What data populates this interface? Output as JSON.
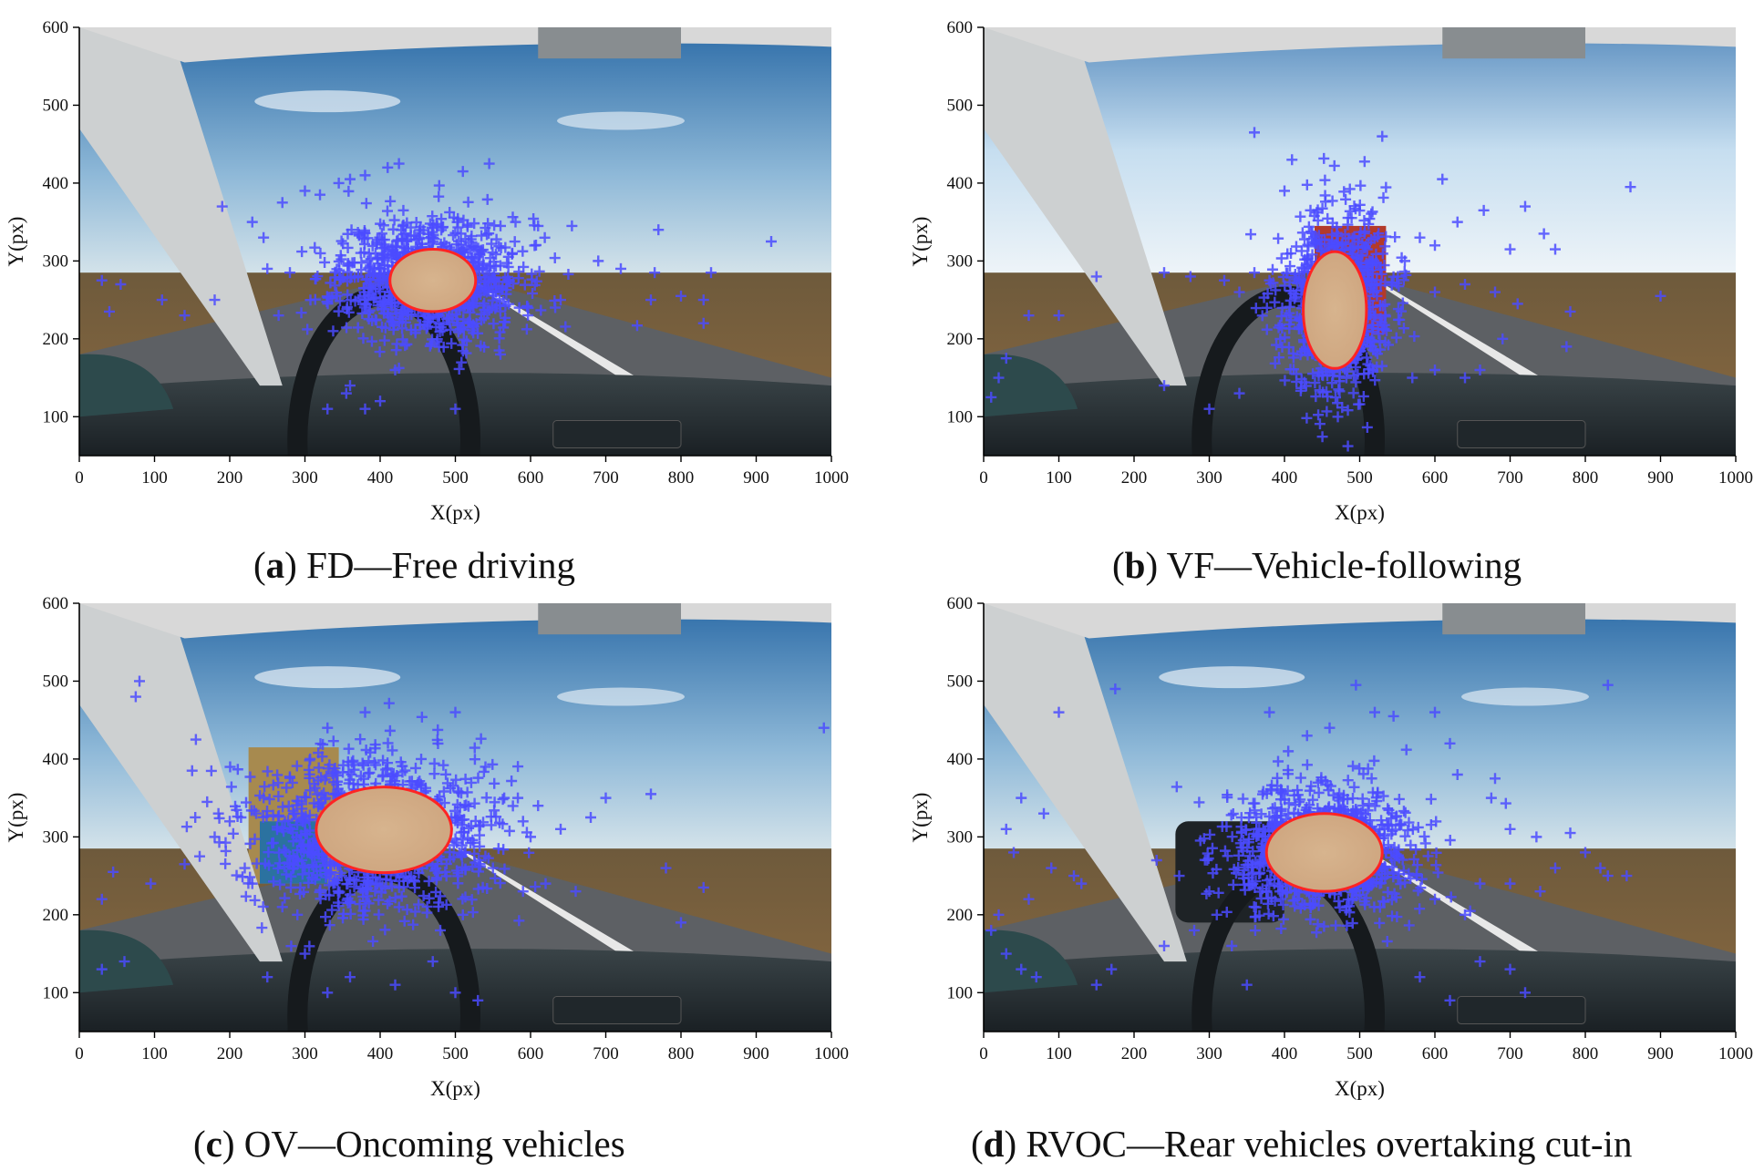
{
  "chart_data": [
    {
      "type": "scatter",
      "panel_letter": "a",
      "caption": "FD—Free driving",
      "xlabel": "X(px)",
      "ylabel": "Y(px)",
      "xlim": [
        0,
        1000
      ],
      "ylim": [
        50,
        600
      ],
      "xticks": [
        0,
        100,
        200,
        300,
        400,
        500,
        600,
        700,
        800,
        900,
        1000
      ],
      "yticks": [
        100,
        200,
        300,
        400,
        500,
        600
      ],
      "background": "driver-view-windshield-open-road",
      "ellipse": {
        "cx": 470,
        "cy": 275,
        "rx": 57,
        "ry": 40
      },
      "cloud": {
        "cx": 465,
        "cy": 278,
        "sx": 75,
        "sy": 48,
        "n": 950,
        "seed": 11
      },
      "outliers": [
        [
          190,
          370
        ],
        [
          230,
          350
        ],
        [
          245,
          330
        ],
        [
          270,
          375
        ],
        [
          300,
          390
        ],
        [
          320,
          385
        ],
        [
          345,
          400
        ],
        [
          360,
          405
        ],
        [
          380,
          410
        ],
        [
          410,
          420
        ],
        [
          425,
          425
        ],
        [
          510,
          415
        ],
        [
          545,
          425
        ],
        [
          560,
          345
        ],
        [
          580,
          350
        ],
        [
          610,
          345
        ],
        [
          655,
          345
        ],
        [
          690,
          300
        ],
        [
          720,
          290
        ],
        [
          765,
          285
        ],
        [
          770,
          340
        ],
        [
          840,
          285
        ],
        [
          920,
          325
        ],
        [
          30,
          275
        ],
        [
          55,
          270
        ],
        [
          110,
          250
        ],
        [
          180,
          250
        ],
        [
          40,
          235
        ],
        [
          250,
          290
        ],
        [
          280,
          285
        ],
        [
          330,
          110
        ],
        [
          355,
          130
        ],
        [
          380,
          110
        ],
        [
          400,
          120
        ],
        [
          500,
          110
        ],
        [
          560,
          180
        ],
        [
          585,
          240
        ],
        [
          640,
          250
        ],
        [
          760,
          250
        ],
        [
          800,
          255
        ],
        [
          830,
          220
        ],
        [
          830,
          250
        ],
        [
          140,
          230
        ],
        [
          265,
          230
        ],
        [
          360,
          140
        ],
        [
          420,
          160
        ]
      ]
    },
    {
      "type": "scatter",
      "panel_letter": "b",
      "caption": "VF—Vehicle-following",
      "xlabel": "X(px)",
      "ylabel": "Y(px)",
      "xlim": [
        0,
        1000
      ],
      "ylim": [
        50,
        600
      ],
      "xticks": [
        0,
        100,
        200,
        300,
        400,
        500,
        600,
        700,
        800,
        900,
        1000
      ],
      "yticks": [
        100,
        200,
        300,
        400,
        500,
        600
      ],
      "background": "driver-view-windshield-following-truck",
      "ellipse": {
        "cx": 467,
        "cy": 237,
        "rx": 42,
        "ry": 75
      },
      "cloud": {
        "cx": 468,
        "cy": 245,
        "sx": 45,
        "sy": 72,
        "n": 850,
        "seed": 23
      },
      "outliers": [
        [
          360,
          465
        ],
        [
          530,
          460
        ],
        [
          410,
          430
        ],
        [
          860,
          395
        ],
        [
          610,
          405
        ],
        [
          400,
          390
        ],
        [
          720,
          370
        ],
        [
          665,
          365
        ],
        [
          745,
          335
        ],
        [
          760,
          315
        ],
        [
          700,
          315
        ],
        [
          630,
          350
        ],
        [
          600,
          320
        ],
        [
          580,
          330
        ],
        [
          240,
          285
        ],
        [
          275,
          280
        ],
        [
          320,
          275
        ],
        [
          340,
          260
        ],
        [
          360,
          285
        ],
        [
          380,
          275
        ],
        [
          560,
          300
        ],
        [
          600,
          260
        ],
        [
          640,
          270
        ],
        [
          680,
          260
        ],
        [
          710,
          245
        ],
        [
          900,
          255
        ],
        [
          780,
          235
        ],
        [
          775,
          190
        ],
        [
          150,
          280
        ],
        [
          100,
          230
        ],
        [
          60,
          230
        ],
        [
          30,
          175
        ],
        [
          20,
          150
        ],
        [
          10,
          125
        ],
        [
          240,
          140
        ],
        [
          300,
          110
        ],
        [
          600,
          160
        ],
        [
          640,
          150
        ],
        [
          660,
          160
        ],
        [
          690,
          200
        ],
        [
          570,
          150
        ],
        [
          340,
          130
        ]
      ]
    },
    {
      "type": "scatter",
      "panel_letter": "c",
      "caption": "OV—Oncoming vehicles",
      "xlabel": "X(px)",
      "ylabel": "Y(px)",
      "xlim": [
        0,
        1000
      ],
      "ylim": [
        50,
        600
      ],
      "xticks": [
        0,
        100,
        200,
        300,
        400,
        500,
        600,
        700,
        800,
        900,
        1000
      ],
      "yticks": [
        100,
        200,
        300,
        400,
        500,
        600
      ],
      "background": "driver-view-windshield-oncoming-truck",
      "ellipse": {
        "cx": 405,
        "cy": 309,
        "rx": 90,
        "ry": 55
      },
      "cloud": {
        "cx": 390,
        "cy": 305,
        "sx": 95,
        "sy": 62,
        "n": 1000,
        "seed": 37
      },
      "outliers": [
        [
          80,
          500
        ],
        [
          75,
          480
        ],
        [
          990,
          440
        ],
        [
          155,
          425
        ],
        [
          150,
          385
        ],
        [
          170,
          345
        ],
        [
          185,
          330
        ],
        [
          200,
          320
        ],
        [
          215,
          325
        ],
        [
          180,
          300
        ],
        [
          160,
          275
        ],
        [
          140,
          265
        ],
        [
          95,
          240
        ],
        [
          45,
          255
        ],
        [
          30,
          220
        ],
        [
          60,
          140
        ],
        [
          30,
          130
        ],
        [
          540,
          390
        ],
        [
          565,
          350
        ],
        [
          590,
          320
        ],
        [
          600,
          300
        ],
        [
          610,
          340
        ],
        [
          640,
          310
        ],
        [
          680,
          325
        ],
        [
          700,
          350
        ],
        [
          760,
          355
        ],
        [
          780,
          260
        ],
        [
          800,
          190
        ],
        [
          830,
          235
        ],
        [
          550,
          260
        ],
        [
          590,
          230
        ],
        [
          620,
          240
        ],
        [
          660,
          230
        ],
        [
          500,
          460
        ],
        [
          380,
          460
        ],
        [
          330,
          440
        ],
        [
          250,
          120
        ],
        [
          300,
          150
        ],
        [
          330,
          100
        ],
        [
          360,
          120
        ],
        [
          420,
          110
        ],
        [
          470,
          140
        ],
        [
          500,
          100
        ],
        [
          530,
          90
        ],
        [
          290,
          200
        ],
        [
          270,
          210
        ],
        [
          230,
          240
        ],
        [
          220,
          260
        ],
        [
          510,
          200
        ],
        [
          480,
          180
        ]
      ]
    },
    {
      "type": "scatter",
      "panel_letter": "d",
      "caption": "RVOC—Rear vehicles overtaking cut-in",
      "xlabel": "X(px)",
      "ylabel": "Y(px)",
      "xlim": [
        0,
        1000
      ],
      "ylim": [
        50,
        600
      ],
      "xticks": [
        0,
        100,
        200,
        300,
        400,
        500,
        600,
        700,
        800,
        900,
        1000
      ],
      "yticks": [
        100,
        200,
        300,
        400,
        500,
        600
      ],
      "background": "driver-view-windshield-overtaking-car",
      "ellipse": {
        "cx": 453,
        "cy": 280,
        "rx": 77,
        "ry": 50
      },
      "cloud": {
        "cx": 450,
        "cy": 283,
        "sx": 80,
        "sy": 52,
        "n": 950,
        "seed": 51
      },
      "outliers": [
        [
          175,
          490
        ],
        [
          495,
          495
        ],
        [
          830,
          495
        ],
        [
          100,
          460
        ],
        [
          380,
          460
        ],
        [
          430,
          430
        ],
        [
          460,
          440
        ],
        [
          520,
          460
        ],
        [
          600,
          460
        ],
        [
          545,
          455
        ],
        [
          405,
          410
        ],
        [
          620,
          420
        ],
        [
          630,
          380
        ],
        [
          680,
          375
        ],
        [
          675,
          350
        ],
        [
          700,
          310
        ],
        [
          735,
          300
        ],
        [
          780,
          305
        ],
        [
          800,
          280
        ],
        [
          820,
          260
        ],
        [
          760,
          260
        ],
        [
          830,
          250
        ],
        [
          855,
          250
        ],
        [
          740,
          230
        ],
        [
          700,
          240
        ],
        [
          660,
          240
        ],
        [
          640,
          200
        ],
        [
          600,
          220
        ],
        [
          660,
          140
        ],
        [
          700,
          130
        ],
        [
          720,
          100
        ],
        [
          50,
          350
        ],
        [
          80,
          330
        ],
        [
          30,
          310
        ],
        [
          40,
          280
        ],
        [
          90,
          260
        ],
        [
          120,
          250
        ],
        [
          130,
          240
        ],
        [
          60,
          220
        ],
        [
          20,
          200
        ],
        [
          10,
          180
        ],
        [
          30,
          150
        ],
        [
          50,
          130
        ],
        [
          70,
          120
        ],
        [
          150,
          110
        ],
        [
          170,
          130
        ],
        [
          230,
          270
        ],
        [
          260,
          250
        ],
        [
          300,
          230
        ],
        [
          310,
          200
        ],
        [
          280,
          180
        ],
        [
          240,
          160
        ],
        [
          620,
          90
        ],
        [
          580,
          120
        ],
        [
          350,
          110
        ],
        [
          330,
          160
        ]
      ]
    }
  ]
}
